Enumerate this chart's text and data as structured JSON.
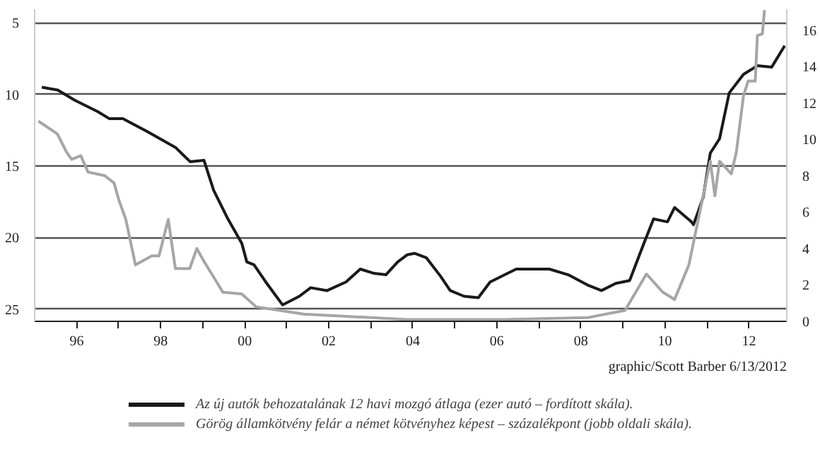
{
  "chart_data": {
    "type": "line",
    "xlim": [
      1995.0,
      2012.9
    ],
    "xticks": [
      {
        "value": 1996,
        "label": "96"
      },
      {
        "value": 1997,
        "label": null
      },
      {
        "value": 1998,
        "label": "98"
      },
      {
        "value": 1999,
        "label": null
      },
      {
        "value": 2000,
        "label": "00"
      },
      {
        "value": 2001,
        "label": null
      },
      {
        "value": 2002,
        "label": "02"
      },
      {
        "value": 2003,
        "label": null
      },
      {
        "value": 2004,
        "label": "04"
      },
      {
        "value": 2005,
        "label": null
      },
      {
        "value": 2006,
        "label": "06"
      },
      {
        "value": 2007,
        "label": null
      },
      {
        "value": 2008,
        "label": "08"
      },
      {
        "value": 2009,
        "label": null
      },
      {
        "value": 2010,
        "label": "10"
      },
      {
        "value": 2011,
        "label": null
      },
      {
        "value": 2012,
        "label": "12"
      }
    ],
    "ylim": [
      25.85,
      4.05
    ],
    "yticks": [
      5,
      10,
      15,
      20,
      25
    ],
    "y2lim": [
      0,
      17.15
    ],
    "y2ticks": [
      0,
      2,
      4,
      6,
      8,
      10,
      12,
      14,
      16
    ],
    "grid": "y",
    "legend": "bottom",
    "line_style": "solid",
    "marker": "none",
    "annotations": [
      "graphic/Scott Barber 6/13/2012"
    ],
    "series": [
      {
        "name": "Az új autók behozatalának 12 havi mozgó átlaga (ezer autó – fordított skála).",
        "color": "#1a1a1a",
        "x": [
          1995.17,
          1995.55,
          1995.95,
          1996.5,
          1996.78,
          1997.1,
          1997.68,
          1998.35,
          1998.7,
          1999.03,
          1999.26,
          1999.6,
          1999.93,
          2000.05,
          2000.22,
          2000.5,
          2000.9,
          2001.3,
          2001.57,
          2001.96,
          2002.41,
          2002.75,
          2003.08,
          2003.36,
          2003.64,
          2003.87,
          2004.04,
          2004.32,
          2004.66,
          2004.89,
          2005.22,
          2005.56,
          2005.84,
          2006.46,
          2007.25,
          2007.7,
          2008.15,
          2008.49,
          2008.83,
          2009.16,
          2009.5,
          2009.73,
          2010.06,
          2010.23,
          2010.63,
          2010.68,
          2010.91,
          2011.08,
          2011.3,
          2011.53,
          2011.87,
          2012.2,
          2012.54,
          2012.85
        ],
        "values": [
          9.5,
          9.7,
          10.4,
          11.2,
          11.7,
          11.7,
          12.6,
          13.7,
          14.7,
          14.6,
          16.7,
          18.7,
          20.4,
          21.7,
          21.9,
          23.1,
          24.7,
          24.1,
          23.5,
          23.7,
          23.1,
          22.2,
          22.5,
          22.6,
          21.7,
          21.2,
          21.1,
          21.4,
          22.7,
          23.7,
          24.1,
          24.2,
          23.1,
          22.2,
          22.2,
          22.6,
          23.3,
          23.7,
          23.2,
          23.0,
          20.4,
          18.7,
          18.9,
          17.9,
          18.9,
          19.1,
          17.2,
          14.1,
          13.1,
          9.9,
          8.6,
          8.0,
          8.1,
          6.6
        ]
      },
      {
        "name": "Görög államkötvény felár a német kötvényhez képest – százalékpont (jobb oldali skála).",
        "color": "#a6a6a6",
        "axis": "y2",
        "x": [
          1995.09,
          1995.54,
          1995.76,
          1995.88,
          1996.1,
          1996.27,
          1996.67,
          1996.89,
          1997.0,
          1997.17,
          1997.4,
          1997.79,
          1997.96,
          1998.18,
          1998.35,
          1998.69,
          1998.86,
          1999.03,
          1999.48,
          1999.93,
          2000.27,
          2001.4,
          2003.87,
          2006.12,
          2008.15,
          2009.05,
          2009.56,
          2009.95,
          2010.23,
          2010.57,
          2011.08,
          2011.19,
          2011.3,
          2011.58,
          2011.7,
          2011.87,
          2011.98,
          2012.15,
          2012.2,
          2012.32,
          2012.37
        ],
        "values": [
          11.0,
          10.3,
          9.3,
          8.9,
          9.1,
          8.2,
          8.0,
          7.6,
          6.7,
          5.6,
          3.1,
          3.6,
          3.6,
          5.6,
          2.9,
          2.9,
          4.0,
          3.3,
          1.6,
          1.5,
          0.8,
          0.4,
          0.1,
          0.1,
          0.2,
          0.6,
          2.6,
          1.6,
          1.2,
          3.1,
          8.8,
          6.9,
          8.8,
          8.1,
          9.3,
          12.4,
          13.2,
          13.2,
          15.7,
          15.8,
          17.1
        ]
      }
    ]
  }
}
